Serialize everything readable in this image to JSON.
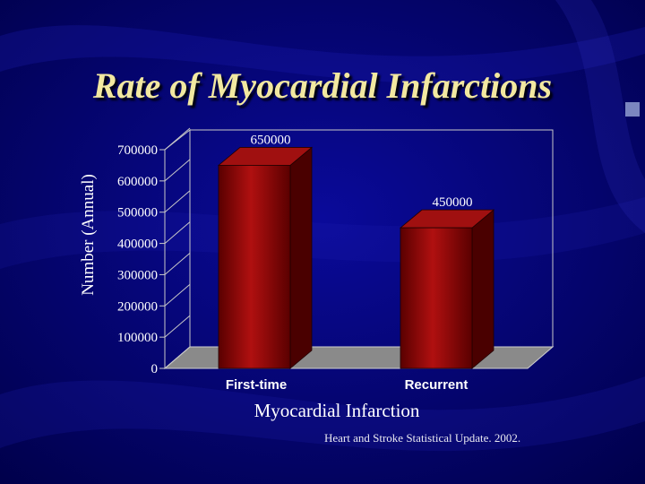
{
  "slide": {
    "title": "Rate of Myocardial Infarctions",
    "source": "Heart and Stroke Statistical Update.  2002."
  },
  "colors": {
    "background": "#00006a",
    "title": "#f2e8a0",
    "bar_front": "#8a0000",
    "bar_side": "#4a0000",
    "text": "#ffffff",
    "axis": "#c8c8c8"
  },
  "chart_data": {
    "type": "bar",
    "categories": [
      "First-time",
      "Recurrent"
    ],
    "values": [
      650000,
      450000
    ],
    "data_labels": [
      "650000",
      "450000"
    ],
    "xlabel": "Myocardial Infarction",
    "ylabel": "Number (Annual)",
    "ylim": [
      0,
      700000
    ],
    "yticks": [
      0,
      100000,
      200000,
      300000,
      400000,
      500000,
      600000,
      700000
    ],
    "ytick_labels": [
      "0",
      "100000",
      "200000",
      "300000",
      "400000",
      "500000",
      "600000",
      "700000"
    ],
    "grid": false,
    "legend": "none",
    "style": "3d"
  }
}
